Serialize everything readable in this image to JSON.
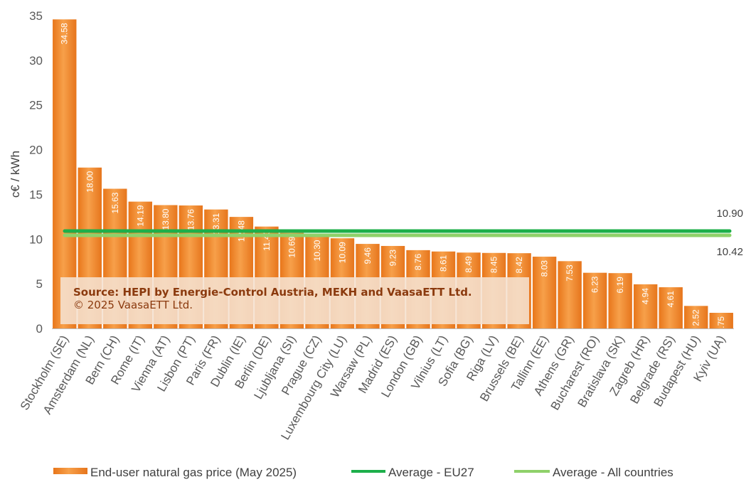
{
  "chart_data": {
    "type": "bar",
    "ylabel": "c€ /  kWh",
    "ylim": [
      0,
      35
    ],
    "yticks": [
      0,
      5,
      10,
      15,
      20,
      25,
      30,
      35
    ],
    "grid": false,
    "legend_position": "bottom",
    "categories": [
      "Stockholm (SE)",
      "Amsterdam (NL)",
      "Bern (CH)",
      "Rome (IT)",
      "Vienna (AT)",
      "Lisbon (PT)",
      "Paris (FR)",
      "Dublin (IE)",
      "Berlin (DE)",
      "Ljubljana (SI)",
      "Prague (CZ)",
      "Luxembourg City (LU)",
      "Warsaw (PL)",
      "Madrid (ES)",
      "London (GB)",
      "Vilnius (LT)",
      "Sofia (BG)",
      "Riga (LV)",
      "Brussels (BE)",
      "Tallinn (EE)",
      "Athens (GR)",
      "Bucharest (RO)",
      "Bratislava (SK)",
      "Zagreb (HR)",
      "Belgrade (RS)",
      "Budapest (HU)",
      "Kyiv (UA)"
    ],
    "series": [
      {
        "name": "End-user natural gas price (May 2025)",
        "type": "bar",
        "color": "#F28C28",
        "values": [
          34.58,
          18.0,
          15.63,
          14.19,
          13.8,
          13.76,
          13.31,
          12.48,
          11.4,
          10.69,
          10.3,
          10.09,
          9.46,
          9.23,
          8.76,
          8.61,
          8.49,
          8.45,
          8.42,
          8.03,
          7.53,
          6.23,
          6.19,
          4.94,
          4.61,
          2.52,
          1.75
        ],
        "labels": [
          "34.58",
          "18.00",
          "15.63",
          "14.19",
          "13.80",
          "13.76",
          "13.31",
          "12.48",
          "11.40",
          "10.69",
          "10.30",
          "10.09",
          "9.46",
          "9.23",
          "8.76",
          "8.61",
          "8.49",
          "8.45",
          "8.42",
          "8.03",
          "7.53",
          "6.23",
          "6.19",
          "4.94",
          "4.61",
          "2.52",
          "1.75"
        ]
      },
      {
        "name": "Average - EU27",
        "type": "line",
        "color": "#1DAF4A",
        "value": 10.9,
        "label": "10.90"
      },
      {
        "name": "Average - All countries",
        "type": "line",
        "color": "#8FD16A",
        "value": 10.42,
        "label": "10.42"
      }
    ],
    "annotation": {
      "line1": "Source: HEPI by Energie-Control Austria, MEKH and VaasaETT Ltd.",
      "line2": "© 2025 VaasaETT Ltd."
    }
  }
}
